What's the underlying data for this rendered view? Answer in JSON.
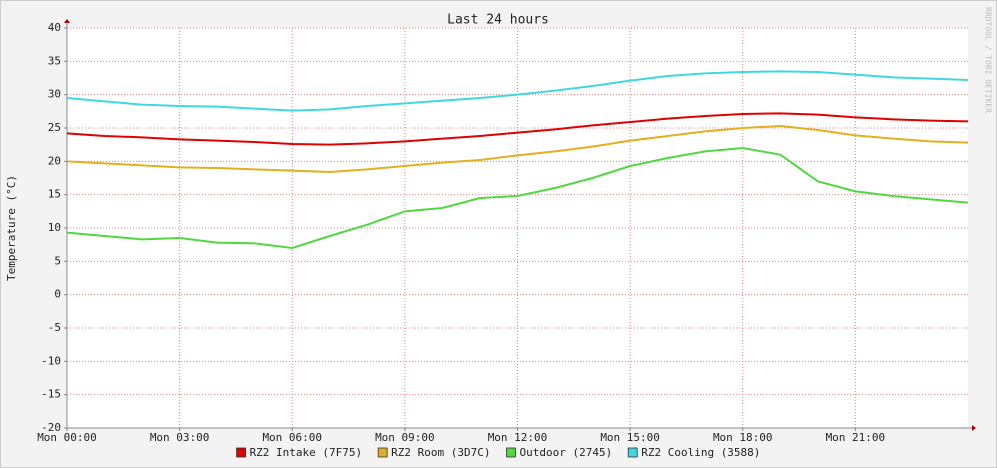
{
  "chart_data": {
    "type": "line",
    "title": "Last 24 hours",
    "y_label": "Temperature (°C)",
    "watermark": "RRDTOOL / TOBI OETIKER",
    "x": [
      0,
      1,
      2,
      3,
      4,
      5,
      6,
      7,
      8,
      9,
      10,
      11,
      12,
      13,
      14,
      15,
      16,
      17,
      18,
      19,
      20,
      21,
      22,
      23,
      24
    ],
    "xlim": [
      0,
      24
    ],
    "xticks": [
      {
        "value": 0,
        "label": "Mon 00:00"
      },
      {
        "value": 3,
        "label": "Mon 03:00"
      },
      {
        "value": 6,
        "label": "Mon 06:00"
      },
      {
        "value": 9,
        "label": "Mon 09:00"
      },
      {
        "value": 12,
        "label": "Mon 12:00"
      },
      {
        "value": 15,
        "label": "Mon 15:00"
      },
      {
        "value": 18,
        "label": "Mon 18:00"
      },
      {
        "value": 21,
        "label": "Mon 21:00"
      }
    ],
    "ylim": [
      -20,
      40
    ],
    "yticks": [
      -20,
      -15,
      -10,
      -5,
      0,
      5,
      10,
      15,
      20,
      25,
      30,
      35,
      40
    ],
    "grid": true,
    "legend": "bottom",
    "series": [
      {
        "name": "RZ2 Intake (7F75)",
        "color": "#e00000",
        "values": [
          24.2,
          23.8,
          23.6,
          23.3,
          23.1,
          22.9,
          22.6,
          22.5,
          22.7,
          23.0,
          23.4,
          23.8,
          24.3,
          24.8,
          25.4,
          25.9,
          26.4,
          26.8,
          27.1,
          27.2,
          27.0,
          26.6,
          26.3,
          26.1,
          26.0
        ]
      },
      {
        "name": "RZ2 Room (3D7C)",
        "color": "#e0b020",
        "values": [
          20.0,
          19.7,
          19.4,
          19.1,
          19.0,
          18.8,
          18.6,
          18.4,
          18.8,
          19.3,
          19.8,
          20.2,
          20.9,
          21.5,
          22.2,
          23.1,
          23.8,
          24.5,
          25.0,
          25.3,
          24.7,
          23.9,
          23.4,
          23.0,
          22.8
        ]
      },
      {
        "name": "Outdoor (2745)",
        "color": "#50d840",
        "values": [
          9.3,
          8.8,
          8.3,
          8.5,
          7.8,
          7.7,
          7.0,
          8.8,
          10.5,
          12.5,
          13.0,
          14.5,
          14.8,
          16.0,
          17.5,
          19.3,
          20.5,
          21.5,
          22.0,
          21.0,
          17.0,
          15.5,
          14.8,
          14.3,
          13.8
        ]
      },
      {
        "name": "RZ2 Cooling (3588)",
        "color": "#40d8e0",
        "values": [
          29.5,
          29.0,
          28.5,
          28.3,
          28.2,
          27.9,
          27.6,
          27.8,
          28.3,
          28.7,
          29.1,
          29.5,
          30.0,
          30.6,
          31.3,
          32.1,
          32.8,
          33.2,
          33.4,
          33.5,
          33.4,
          33.0,
          32.6,
          32.4,
          32.2
        ]
      }
    ]
  }
}
